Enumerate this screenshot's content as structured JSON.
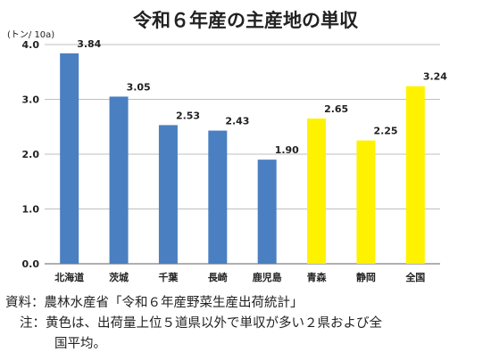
{
  "chart_data": {
    "type": "bar",
    "title": "令和６年産の主産地の単収",
    "ylabel": "(トン/ 10a)",
    "xlabel": "",
    "ylim": [
      0,
      4
    ],
    "yticks": [
      0,
      1,
      2,
      3,
      4
    ],
    "ytick_labels": [
      "0.0",
      "1.0",
      "2.0",
      "3.0",
      "4.0"
    ],
    "categories": [
      "北海道",
      "茨城",
      "千葉",
      "長崎",
      "鹿児島",
      "青森",
      "静岡",
      "全国"
    ],
    "values": [
      3.84,
      3.05,
      2.53,
      2.43,
      1.9,
      2.65,
      2.25,
      3.24
    ],
    "value_labels": [
      "3.84",
      "3.05",
      "2.53",
      "2.43",
      "1.90",
      "2.65",
      "2.25",
      "3.24"
    ],
    "bar_colors": [
      "#4a7fc1",
      "#4a7fc1",
      "#4a7fc1",
      "#4a7fc1",
      "#4a7fc1",
      "#fff200",
      "#fff200",
      "#fff200"
    ],
    "grid": true,
    "legend": "none"
  },
  "notes": {
    "source": "資料：農林水産省「令和６年産野菜生産出荷統計」",
    "note_line1": "注：黄色は、出荷量上位５道県以外で単収が多い２県および全",
    "note_line2": "国平均。"
  },
  "colors": {
    "main_bar": "#4a7fc1",
    "highlight_bar": "#fff200",
    "grid": "#bfbfbf",
    "axis": "#808080"
  }
}
